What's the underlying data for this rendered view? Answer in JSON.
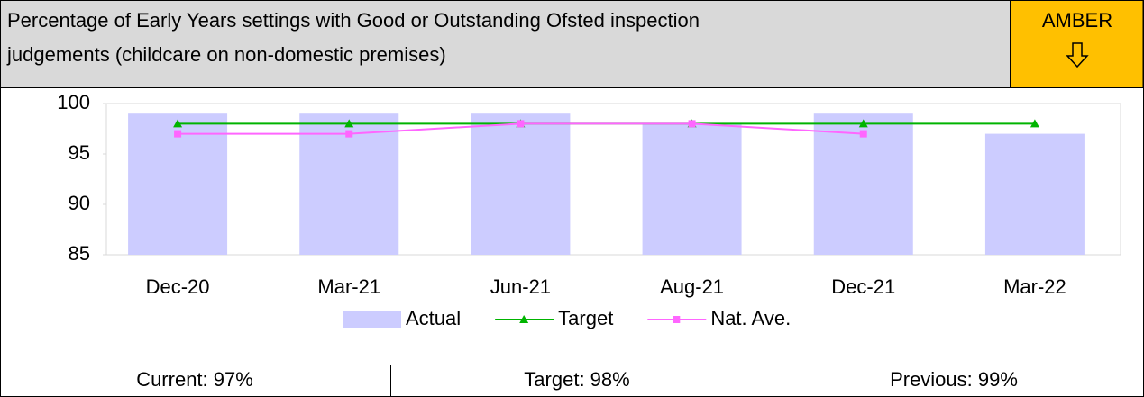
{
  "header": {
    "title_lines": [
      "Percentage of Early Years settings with Good or Outstanding Ofsted inspection",
      "judgements (childcare on non-domestic premises)"
    ],
    "status": "AMBER"
  },
  "chart_data": {
    "type": "bar",
    "categories": [
      "Dec-20",
      "Mar-21",
      "Jun-21",
      "Aug-21",
      "Dec-21",
      "Mar-22"
    ],
    "series": [
      {
        "name": "Actual",
        "type": "bar",
        "color": "#ccccff",
        "values": [
          99,
          99,
          99,
          98,
          99,
          97
        ]
      },
      {
        "name": "Target",
        "type": "line",
        "marker": "triangle",
        "color": "#00b400",
        "values": [
          98,
          98,
          98,
          98,
          98,
          98
        ]
      },
      {
        "name": "Nat. Ave.",
        "type": "line",
        "marker": "square",
        "color": "#ff66ff",
        "values": [
          97,
          97,
          98,
          98,
          97,
          null
        ]
      }
    ],
    "ylim": [
      85,
      100
    ],
    "yticks": [
      85,
      90,
      95,
      100
    ],
    "grid": false,
    "legend": "bottom"
  },
  "footer": [
    "Current: 97%",
    "Target: 98%",
    "Previous: 99%"
  ]
}
